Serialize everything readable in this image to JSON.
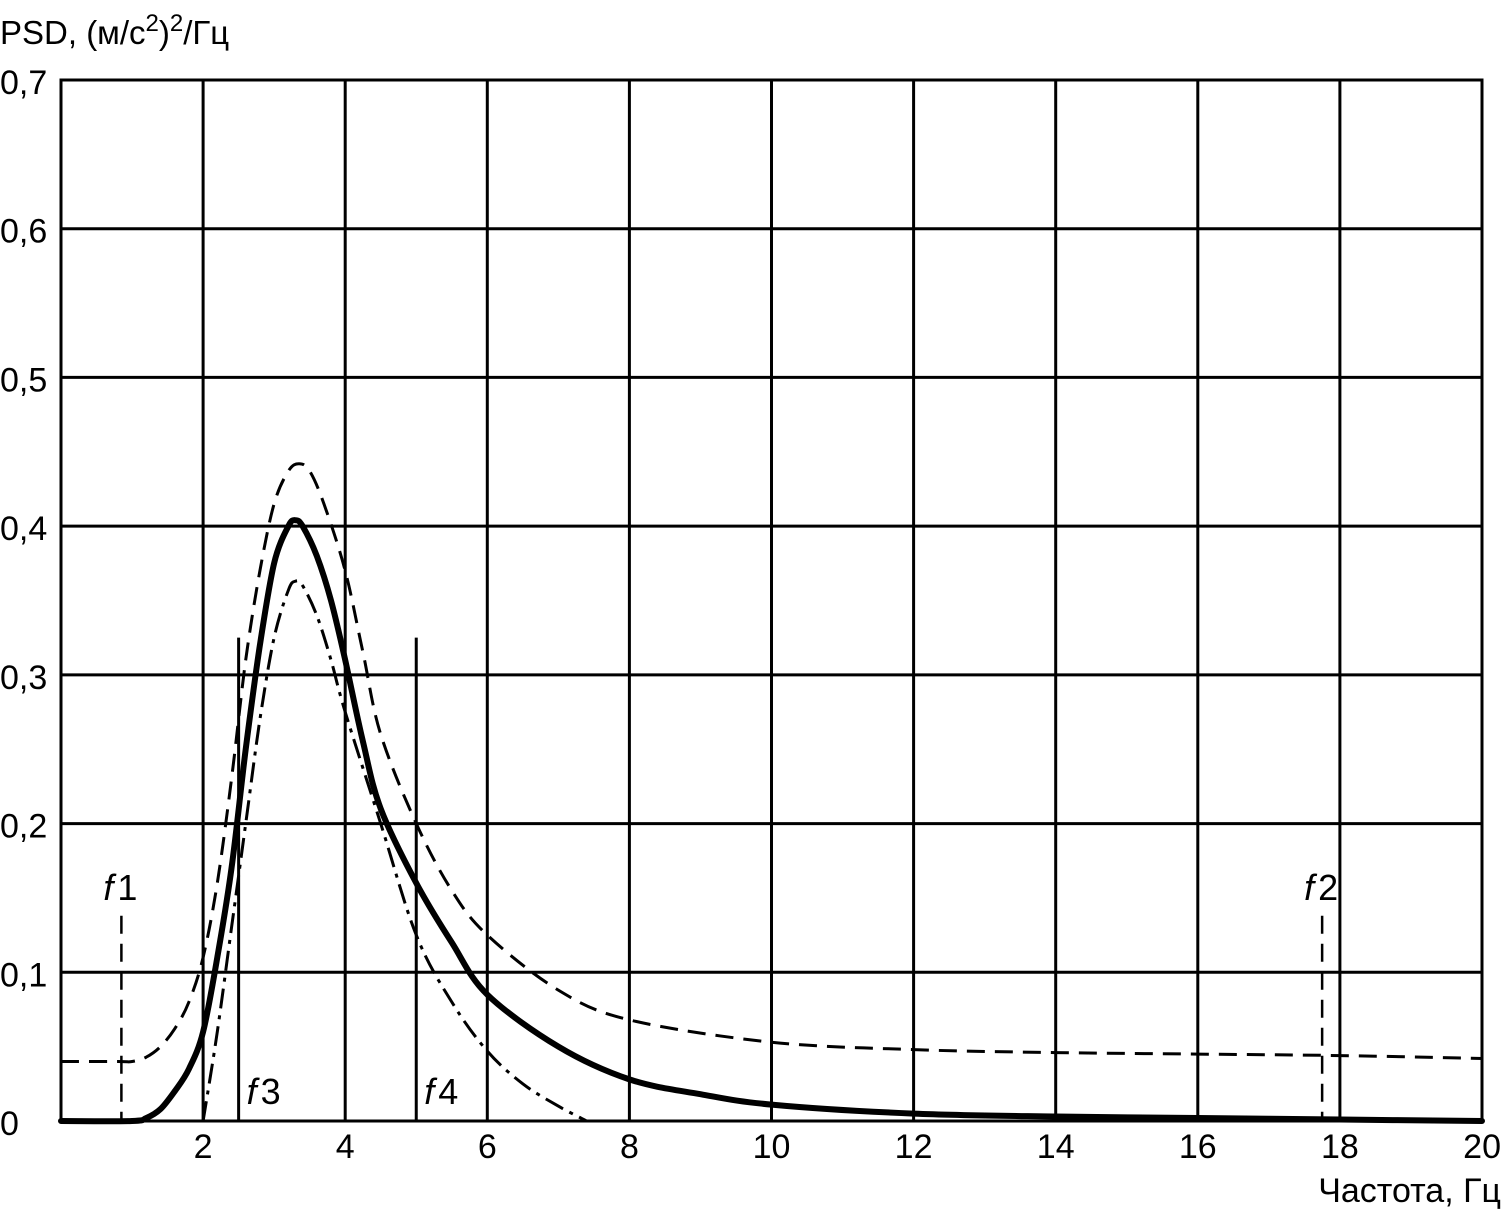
{
  "chart_data": {
    "type": "line",
    "title": "",
    "ylabel": {
      "prefix": "PSD, (м/с",
      "sup1": "2",
      "middle": ")",
      "sup2": "2",
      "suffix": "/Гц"
    },
    "xlabel": "Частота, Гц",
    "xlim": [
      0,
      20
    ],
    "ylim": [
      0,
      0.7
    ],
    "grid": true,
    "xticks": [
      2,
      4,
      6,
      8,
      10,
      12,
      14,
      16,
      18,
      20
    ],
    "xtick_labels": [
      "2",
      "4",
      "6",
      "8",
      "10",
      "12",
      "14",
      "16",
      "18",
      "20"
    ],
    "yticks": [
      0,
      0.1,
      0.2,
      0.3,
      0.4,
      0.5,
      0.6,
      0.7
    ],
    "ytick_labels": [
      "0",
      "0,1",
      "0,2",
      "0,3",
      "0,4",
      "0,5",
      "0,6",
      "0,7"
    ],
    "x_gridlines": [
      2,
      4,
      6,
      8,
      10,
      12,
      14,
      16,
      18
    ],
    "series": [
      {
        "style": "solid-thick",
        "color": "#000000",
        "x": [
          0,
          1,
          1.2,
          1.4,
          1.6,
          1.8,
          2.0,
          2.2,
          2.4,
          2.6,
          2.8,
          3.0,
          3.2,
          3.3,
          3.4,
          3.6,
          3.8,
          4.0,
          4.25,
          4.5,
          5.0,
          5.5,
          6.0,
          7.0,
          8.0,
          9.0,
          10.0,
          12.0,
          14.0,
          16.0,
          18.0,
          20.0
        ],
        "y": [
          0,
          0,
          0.002,
          0.008,
          0.02,
          0.035,
          0.06,
          0.11,
          0.17,
          0.25,
          0.32,
          0.375,
          0.4,
          0.404,
          0.4,
          0.38,
          0.35,
          0.31,
          0.255,
          0.21,
          0.16,
          0.12,
          0.085,
          0.05,
          0.028,
          0.018,
          0.011,
          0.005,
          0.003,
          0.002,
          0.001,
          0
        ]
      },
      {
        "style": "dashed",
        "color": "#000000",
        "x": [
          0,
          0.8,
          1.0,
          1.2,
          1.4,
          1.6,
          1.8,
          2.0,
          2.2,
          2.4,
          2.6,
          2.8,
          3.0,
          3.2,
          3.35,
          3.5,
          3.7,
          4.0,
          4.25,
          4.5,
          5.0,
          5.5,
          6.0,
          7.0,
          8.0,
          10.0,
          12.0,
          14.0,
          16.0,
          18.0,
          20.0
        ],
        "y": [
          0.04,
          0.04,
          0.04,
          0.043,
          0.05,
          0.062,
          0.08,
          0.11,
          0.16,
          0.23,
          0.31,
          0.37,
          0.415,
          0.437,
          0.442,
          0.437,
          0.415,
          0.37,
          0.315,
          0.26,
          0.2,
          0.155,
          0.125,
          0.088,
          0.068,
          0.053,
          0.048,
          0.046,
          0.045,
          0.044,
          0.042
        ]
      },
      {
        "style": "dash-dot",
        "color": "#000000",
        "x": [
          2.0,
          2.2,
          2.4,
          2.6,
          2.8,
          3.0,
          3.2,
          3.3,
          3.4,
          3.6,
          3.8,
          4.0,
          4.5,
          5.0,
          5.5,
          6.0,
          6.5,
          7.0,
          7.4
        ],
        "y": [
          0.0,
          0.06,
          0.13,
          0.2,
          0.27,
          0.325,
          0.357,
          0.363,
          0.36,
          0.34,
          0.31,
          0.275,
          0.2,
          0.125,
          0.08,
          0.047,
          0.025,
          0.01,
          0.0
        ]
      }
    ],
    "annotations": [
      {
        "label": "f",
        "num": "1",
        "x": 0.85,
        "y_top": 0.138,
        "style": "dashed"
      },
      {
        "label": "f",
        "num": "2",
        "x": 17.75,
        "y_top": 0.138,
        "style": "dashed"
      },
      {
        "label": "f",
        "num": "3",
        "x": 2.5,
        "y_top": 0.325,
        "style": "solid"
      },
      {
        "label": "f",
        "num": "4",
        "x": 5.0,
        "y_top": 0.325,
        "style": "solid"
      }
    ]
  }
}
